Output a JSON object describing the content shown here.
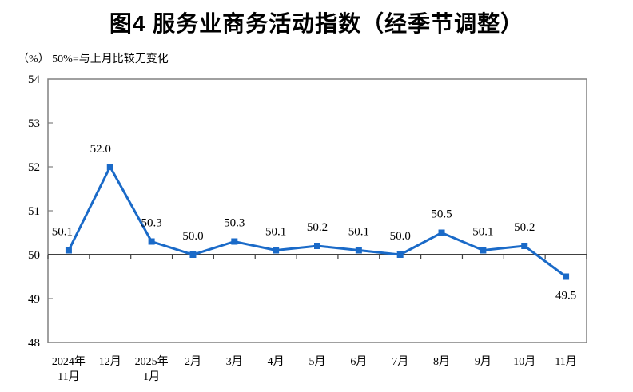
{
  "header": {
    "title": "图4 服务业商务活动指数（经季节调整）",
    "subtitle": "（%） 50%=与上月比较无变化"
  },
  "chart_data": {
    "type": "line",
    "title": "图4 服务业商务活动指数（经季节调整）",
    "subtitle": "（%） 50%=与上月比较无变化",
    "categories": [
      "2024年\n11月",
      "12月",
      "2025年\n1月",
      "2月",
      "3月",
      "4月",
      "5月",
      "6月",
      "7月",
      "8月",
      "9月",
      "10月",
      "11月"
    ],
    "values": [
      50.1,
      52.0,
      50.3,
      50.0,
      50.3,
      50.1,
      50.2,
      50.1,
      50.0,
      50.5,
      50.1,
      50.2,
      49.5
    ],
    "ylabel": "%",
    "ylim": [
      48,
      54
    ],
    "ytick_step": 1,
    "yticks": [
      48,
      49,
      50,
      51,
      52,
      53,
      54
    ],
    "reference_line": 50,
    "grid": false,
    "legend_position": "none",
    "colors": {
      "line": "#1a6ac8",
      "marker": "#1a6ac8",
      "frame": "#808080",
      "reference_line": "#404040",
      "text": "#000000"
    }
  }
}
